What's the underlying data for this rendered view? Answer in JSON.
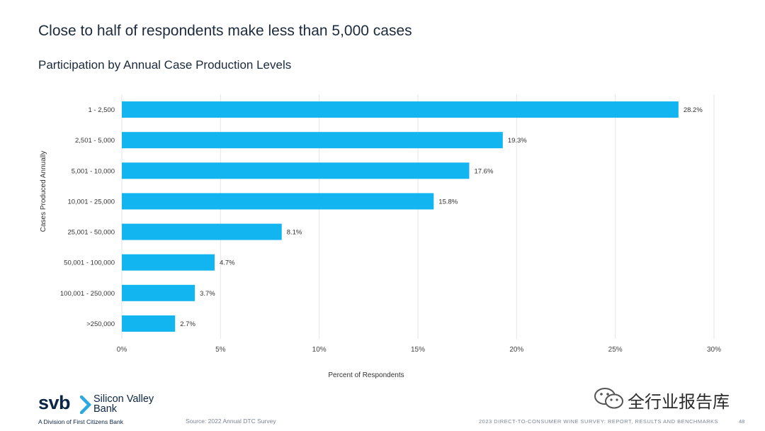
{
  "page": {
    "title": "Close to half of respondents make less than 5,000 cases",
    "subtitle": "Participation by Annual Case Production Levels"
  },
  "chart_data": {
    "type": "bar",
    "orientation": "horizontal",
    "title": "Participation by Annual Case Production Levels",
    "xlabel": "Percent of Respondents",
    "ylabel": "Cases Produced Annually",
    "categories": [
      "1 - 2,500",
      "2,501 - 5,000",
      "5,001 - 10,000",
      "10,001 - 25,000",
      "25,001 - 50,000",
      "50,001 - 100,000",
      "100,001 - 250,000",
      ">250,000"
    ],
    "values": [
      28.2,
      19.3,
      17.6,
      15.8,
      8.1,
      4.7,
      3.7,
      2.7
    ],
    "value_labels": [
      "28.2%",
      "19.3%",
      "17.6%",
      "15.8%",
      "8.1%",
      "4.7%",
      "3.7%",
      "2.7%"
    ],
    "xlim": [
      0,
      30
    ],
    "xticks": [
      0,
      5,
      10,
      15,
      20,
      25,
      30
    ],
    "xtick_labels": [
      "0%",
      "5%",
      "10%",
      "15%",
      "20%",
      "25%",
      "30%"
    ],
    "grid": true,
    "bar_color": "#12b5f0"
  },
  "footer": {
    "logo_text": "svb",
    "logo_name_line1": "Silicon Valley",
    "logo_name_line2": "Bank",
    "logo_division": "A Division of First Citizens Bank",
    "source": "Source: 2022 Annual DTC Survey",
    "report_title": "2023 DIRECT-TO-CONSUMER WINE SURVEY: REPORT, RESULTS AND BENCHMARKS",
    "page_number": "48",
    "watermark_text": "全行业报告库"
  },
  "colors": {
    "brand_navy": "#0b2545",
    "brand_accent": "#2ba8e0",
    "grid": "#e3e6ea"
  }
}
